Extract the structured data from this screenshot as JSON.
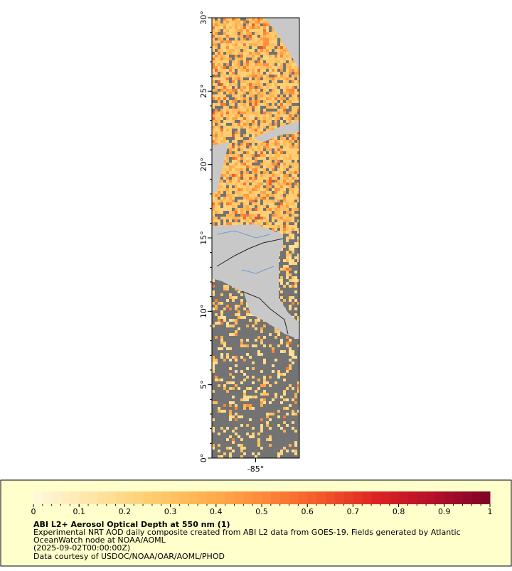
{
  "map": {
    "ylim": [
      0,
      30
    ],
    "xlim": [
      -88,
      -82
    ],
    "yticks": [
      {
        "value": 0,
        "label": "0°"
      },
      {
        "value": 5,
        "label": "5°"
      },
      {
        "value": 10,
        "label": "10°"
      },
      {
        "value": 15,
        "label": "15°"
      },
      {
        "value": 20,
        "label": "20°"
      },
      {
        "value": 25,
        "label": "25°"
      },
      {
        "value": 30,
        "label": "30°"
      }
    ],
    "xticks": [
      {
        "value": -85,
        "label": "-85°"
      }
    ]
  },
  "colorbar": {
    "lim": [
      0,
      1
    ],
    "ticks": [
      0,
      0.1,
      0.2,
      0.3,
      0.4,
      0.5,
      0.6,
      0.7,
      0.8,
      0.9,
      1
    ],
    "colors": [
      "#fff8dc",
      "#ffe6a8",
      "#ffcf72",
      "#ffb24f",
      "#ff8b3a",
      "#f45a2a",
      "#dc2323",
      "#b5102a",
      "#7d0225"
    ]
  },
  "legend": {
    "title": "ABI L2+ Aerosol Optical Depth at 550 nm (1)",
    "lines": [
      "Experimental NRT AOD daily composite created from ABI L2 data from GOES-19. Fields generated by Atlantic",
      "OceanWatch node at NOAA/AOML",
      "(2025-09-02T00:00:00Z)",
      "Data courtesy of USDOC/NOAA/OAR/AOML/PHOD"
    ]
  }
}
